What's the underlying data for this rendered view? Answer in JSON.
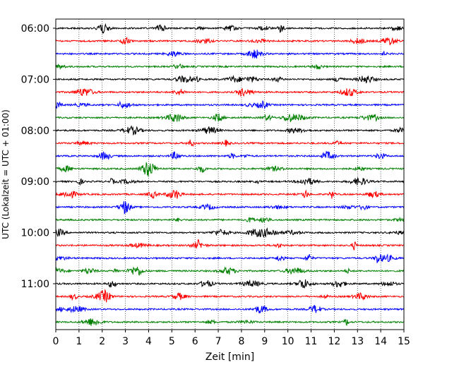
{
  "chart_data": {
    "type": "line",
    "xlabel": "Zeit  [min]",
    "ylabel": "UTC (Lokalzeit = UTC + 01:00)",
    "xlim": [
      0,
      15
    ],
    "x_ticks": [
      "0",
      "1",
      "2",
      "3",
      "4",
      "5",
      "6",
      "7",
      "8",
      "9",
      "10",
      "11",
      "12",
      "13",
      "14",
      "15"
    ],
    "y_ticks": [
      "06:00",
      "07:00",
      "08:00",
      "09:00",
      "10:00",
      "11:00"
    ],
    "grid": "vertical dotted at each minute",
    "trace_interval_minutes": 15,
    "series_colors": [
      "#000000",
      "#ff0000",
      "#0000ff",
      "#008000"
    ],
    "traces": [
      {
        "start": "06:00",
        "color": "#000000"
      },
      {
        "start": "06:15",
        "color": "#ff0000"
      },
      {
        "start": "06:30",
        "color": "#0000ff"
      },
      {
        "start": "06:45",
        "color": "#008000"
      },
      {
        "start": "07:00",
        "color": "#000000"
      },
      {
        "start": "07:15",
        "color": "#ff0000"
      },
      {
        "start": "07:30",
        "color": "#0000ff"
      },
      {
        "start": "07:45",
        "color": "#008000"
      },
      {
        "start": "08:00",
        "color": "#000000"
      },
      {
        "start": "08:15",
        "color": "#ff0000"
      },
      {
        "start": "08:30",
        "color": "#0000ff"
      },
      {
        "start": "08:45",
        "color": "#008000"
      },
      {
        "start": "09:00",
        "color": "#000000"
      },
      {
        "start": "09:15",
        "color": "#ff0000"
      },
      {
        "start": "09:30",
        "color": "#0000ff"
      },
      {
        "start": "09:45",
        "color": "#008000"
      },
      {
        "start": "10:00",
        "color": "#000000"
      },
      {
        "start": "10:15",
        "color": "#ff0000"
      },
      {
        "start": "10:30",
        "color": "#0000ff"
      },
      {
        "start": "10:45",
        "color": "#008000"
      },
      {
        "start": "11:00",
        "color": "#000000"
      },
      {
        "start": "11:15",
        "color": "#ff0000"
      },
      {
        "start": "11:30",
        "color": "#0000ff"
      },
      {
        "start": "11:45",
        "color": "#008000"
      }
    ]
  }
}
